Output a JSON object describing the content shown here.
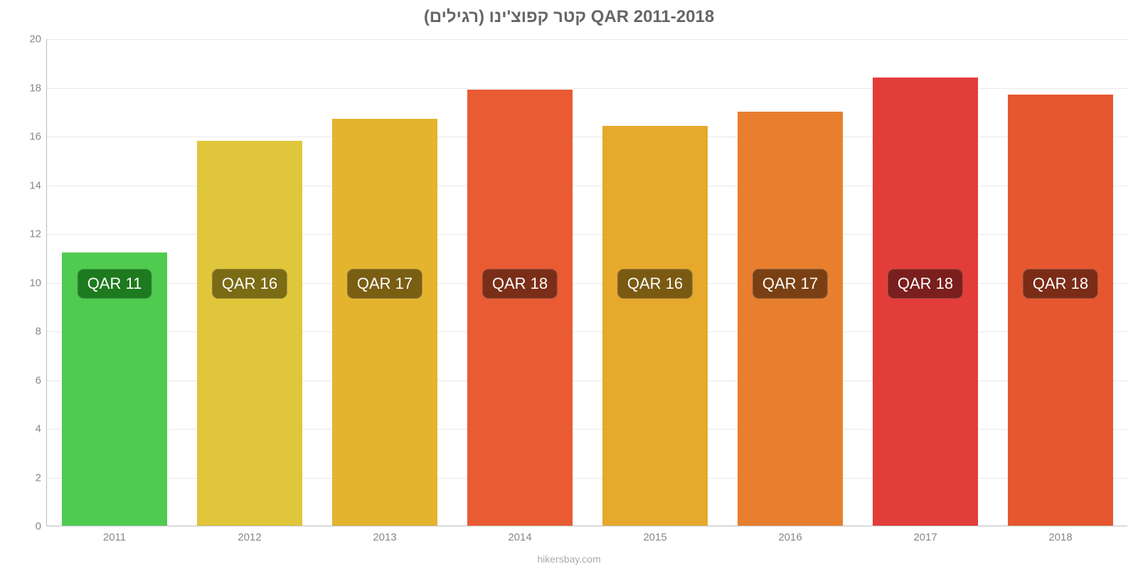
{
  "chart": {
    "type": "bar",
    "title": "קטר קפוצ'ינו (רגילים) QAR 2011-2018",
    "title_fontsize": 24,
    "title_color": "#666666",
    "categories": [
      "2011",
      "2012",
      "2013",
      "2014",
      "2015",
      "2016",
      "2017",
      "2018"
    ],
    "values": [
      11.2,
      15.8,
      16.7,
      17.9,
      16.4,
      17.0,
      18.4,
      17.7
    ],
    "bar_labels": [
      "QAR 11",
      "QAR 16",
      "QAR 17",
      "QAR 18",
      "QAR 16",
      "QAR 17",
      "QAR 18",
      "QAR 18"
    ],
    "bar_colors": [
      "#4fcb4f",
      "#e0c63a",
      "#e4b42e",
      "#e95b32",
      "#e6a92c",
      "#e77f2e",
      "#e33d3a",
      "#e6572f"
    ],
    "badge_bg": [
      "#1e7a1e",
      "#7a6b14",
      "#7a5e12",
      "#7a2e18",
      "#7a5a12",
      "#7a4014",
      "#7a1f1d",
      "#7a2c17"
    ],
    "ylim": [
      0,
      20
    ],
    "ytick_step": 2,
    "yticks": [
      "0",
      "2",
      "4",
      "6",
      "8",
      "10",
      "12",
      "14",
      "16",
      "18",
      "20"
    ],
    "bar_width": 0.78,
    "badge_value_anchor": 10,
    "grid_color": "#e8e8e8",
    "axis_color": "#bbbbbb",
    "label_color": "#888888",
    "label_fontsize": 15,
    "badge_fontsize": 22,
    "badge_text_color": "#ffffff",
    "background_color": "#ffffff",
    "credit": "hikersbay.com",
    "credit_color": "#aaaaaa",
    "credit_fontsize": 14
  }
}
